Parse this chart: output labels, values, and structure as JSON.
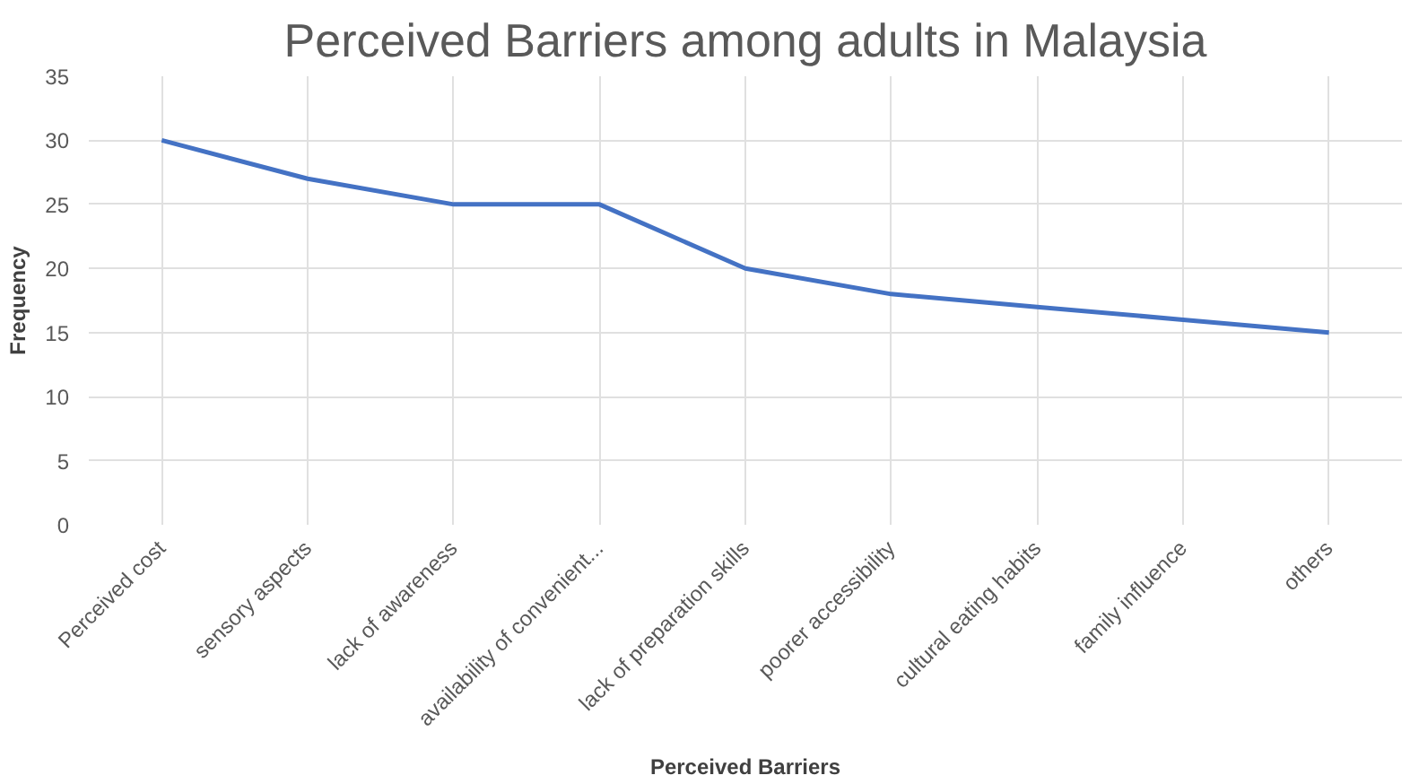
{
  "chart_data": {
    "type": "line",
    "title": "Perceived Barriers among adults in Malaysia",
    "xlabel": "Perceived Barriers",
    "ylabel": "Frequency",
    "categories": [
      "Perceived cost",
      "sensory aspects",
      "lack of awareness",
      "availability of convenient...",
      "lack of preparation skills",
      "poorer accessibility",
      "cultural eating habits",
      "family influence",
      "others"
    ],
    "series": [
      {
        "color": "#4472c4",
        "values": [
          30,
          27,
          25,
          25,
          20,
          18,
          17,
          16,
          15
        ]
      }
    ],
    "ylim": [
      0,
      35
    ],
    "yticks": [
      0,
      5,
      10,
      15,
      20,
      25,
      30,
      35
    ],
    "grid": true
  }
}
